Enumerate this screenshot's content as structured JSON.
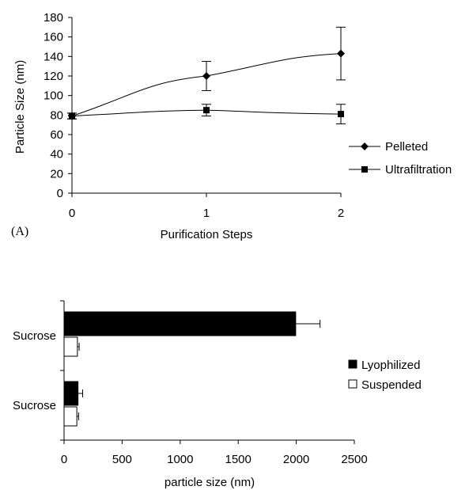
{
  "chart_data": [
    {
      "type": "line",
      "panel_label": "(A)",
      "title": "",
      "xlabel": "Purification Steps",
      "ylabel": "Particle Size (nm)",
      "xlim": [
        0,
        2
      ],
      "ylim": [
        0,
        180
      ],
      "x_ticks": [
        "0",
        "1",
        "2"
      ],
      "y_ticks": [
        "0",
        "20",
        "40",
        "60",
        "80",
        "100",
        "120",
        "140",
        "160",
        "180"
      ],
      "grid": false,
      "legend_position": "right",
      "x": [
        0,
        1,
        2
      ],
      "series": [
        {
          "name": "Pelleted",
          "marker": "diamond",
          "values": [
            79,
            120,
            143
          ],
          "errors": [
            3,
            15,
            27
          ]
        },
        {
          "name": "Ultrafiltration",
          "marker": "square",
          "values": [
            79,
            85,
            81
          ],
          "errors": [
            3,
            6,
            10
          ]
        }
      ]
    },
    {
      "type": "bar",
      "orientation": "horizontal",
      "title": "",
      "xlabel": "particle size (nm)",
      "ylabel": "",
      "xlim": [
        0,
        2500
      ],
      "x_ticks": [
        "0",
        "500",
        "1000",
        "1500",
        "2000",
        "2500"
      ],
      "categories": [
        "Sucrose",
        "Sucrose"
      ],
      "grid": false,
      "legend_position": "right",
      "series": [
        {
          "name": "Lyophilized",
          "color": "#000000",
          "values": [
            1995,
            120
          ],
          "errors": [
            210,
            40
          ]
        },
        {
          "name": "Suspended",
          "color": "#ffffff",
          "values": [
            115,
            110
          ],
          "errors": [
            15,
            15
          ]
        }
      ]
    }
  ]
}
